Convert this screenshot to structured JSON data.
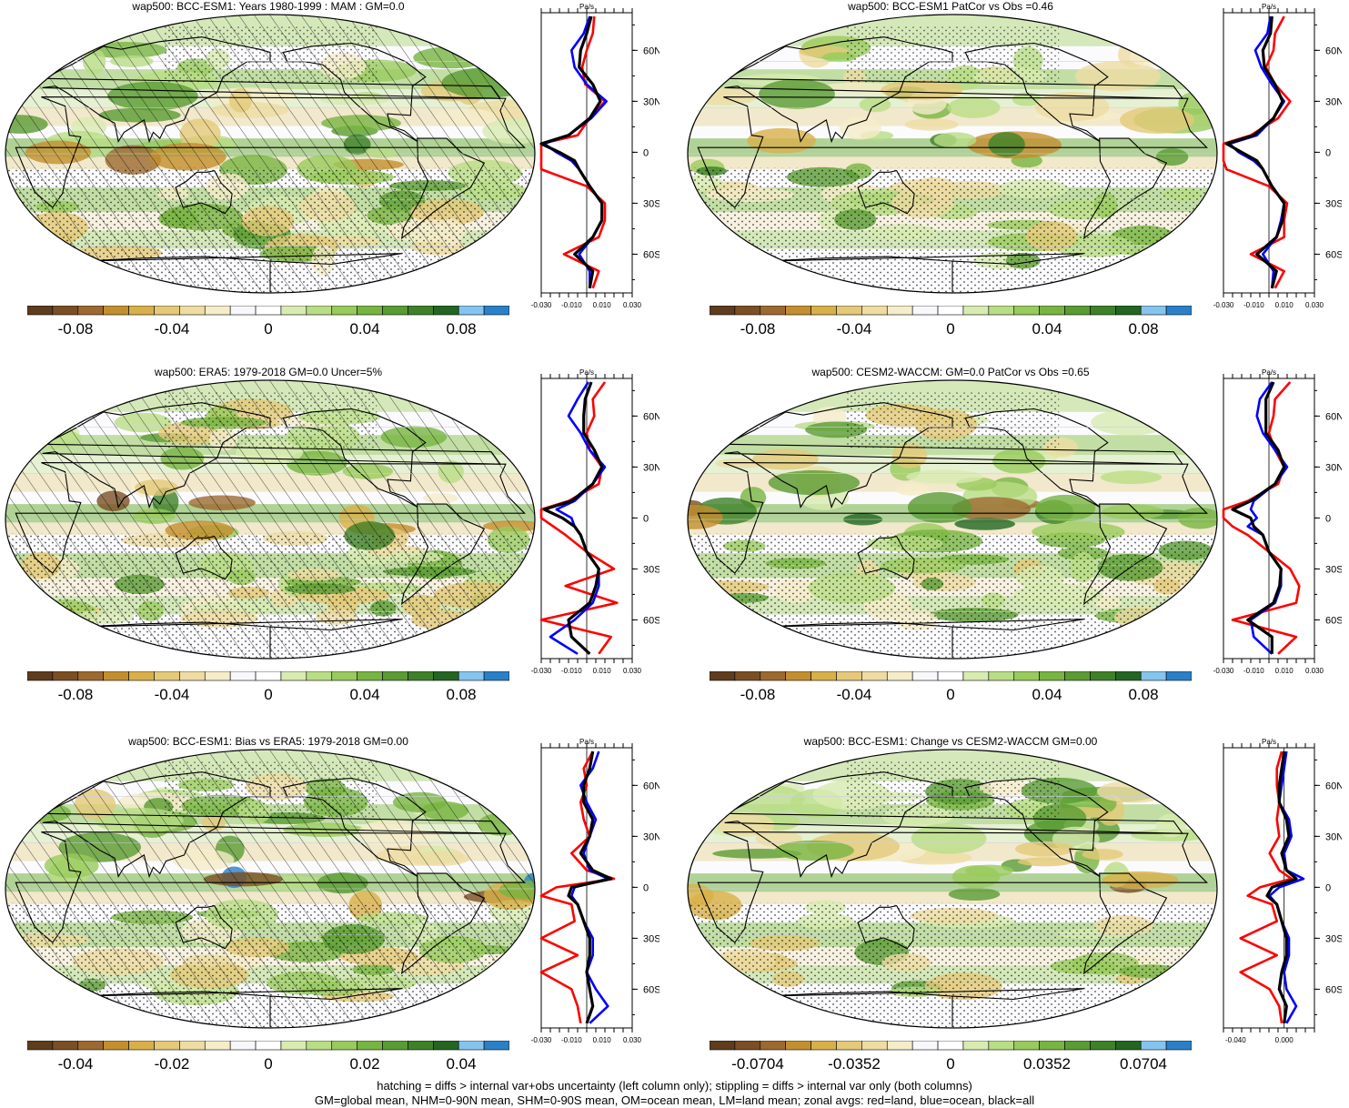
{
  "colors": {
    "colorbar": [
      "#5e3c1e",
      "#7b4f24",
      "#9c6a31",
      "#c38f2e",
      "#d8b04a",
      "#e4c978",
      "#eedca2",
      "#f5ecc9",
      "#f8f8fc",
      "#ffffff",
      "#d8ebb0",
      "#b9dd84",
      "#98ca5c",
      "#78b441",
      "#5a9b33",
      "#3e8129",
      "#236622",
      "#85c4ee",
      "#2a80c8"
    ],
    "ocean": "#f6f7fc",
    "land_line": "#000000",
    "line_land": "#ff0000",
    "line_ocean": "#0000ff",
    "line_all": "#000000"
  },
  "footer": {
    "line1": "hatching = diffs > internal var+obs uncertainty (left column only); stippling = diffs > internal var only (both columns)",
    "line2": "GM=global mean, NHM=0-90N mean, SHM=0-90S mean, OM=ocean mean, LM=land mean; zonal avgs: red=land, blue=ocean, black=all"
  },
  "chart_data": [
    {
      "type": "heatmap",
      "title": "wap500: BCC-ESM1: Years 1980-1999 : MAM : GM=0.0",
      "hatching": true,
      "stippling": true,
      "colorbar_ticks": [
        "-0.08",
        "-0.04",
        "0",
        "0.04",
        "0.08"
      ],
      "colorbar_range": [
        -0.1,
        0.1
      ],
      "zonal": {
        "unit": "Pa/s",
        "xtick_labels": [
          "-0.030",
          "-0.010",
          "0.010",
          "0.030"
        ],
        "xlim": [
          -0.03,
          0.03
        ],
        "ytick_labels": [
          "60N",
          "30N",
          "0",
          "30S",
          "60S"
        ],
        "latitudes": [
          80,
          70,
          60,
          50,
          40,
          30,
          20,
          10,
          5,
          0,
          -5,
          -10,
          -20,
          -30,
          -40,
          -50,
          -60,
          -70,
          -80
        ],
        "series": [
          {
            "name": "land",
            "values": [
              0.005,
              0.004,
              0.0,
              -0.003,
              -0.001,
              0.012,
              0.002,
              -0.006,
              -0.03,
              -0.03,
              -0.03,
              -0.03,
              0.0,
              0.012,
              0.012,
              0.008,
              -0.015,
              0.008,
              0.004
            ]
          },
          {
            "name": "ocean",
            "values": [
              0.002,
              -0.002,
              -0.01,
              -0.008,
              0.0,
              0.013,
              0.003,
              -0.012,
              -0.028,
              -0.02,
              -0.01,
              -0.005,
              0.002,
              0.01,
              0.01,
              0.004,
              -0.005,
              0.002,
              0.002
            ]
          },
          {
            "name": "all",
            "values": [
              0.003,
              0.0,
              -0.004,
              -0.005,
              0.004,
              0.009,
              0.002,
              -0.012,
              -0.03,
              -0.018,
              -0.008,
              -0.005,
              0.002,
              0.01,
              0.01,
              0.004,
              -0.008,
              0.004,
              0.002
            ]
          }
        ]
      }
    },
    {
      "type": "heatmap",
      "title": "wap500: BCC-ESM1 PatCor vs Obs =0.46",
      "hatching": false,
      "stippling": true,
      "colorbar_ticks": [
        "-0.08",
        "-0.04",
        "0",
        "0.04",
        "0.08"
      ],
      "colorbar_range": [
        -0.1,
        0.1
      ],
      "zonal": {
        "unit": "Pa/s",
        "xtick_labels": [
          "-0.030",
          "-0.010",
          "0.010",
          "0.030"
        ],
        "xlim": [
          -0.03,
          0.03
        ],
        "ytick_labels": [
          "60N",
          "30N",
          "0",
          "30S",
          "60S"
        ],
        "latitudes": [
          80,
          70,
          60,
          50,
          40,
          30,
          20,
          10,
          5,
          0,
          -5,
          -10,
          -20,
          -30,
          -40,
          -50,
          -60,
          -70,
          -80
        ],
        "series": [
          {
            "name": "land",
            "values": [
              0.01,
              0.004,
              0.003,
              -0.002,
              0.004,
              0.014,
              0.006,
              -0.012,
              -0.03,
              -0.03,
              -0.03,
              -0.028,
              0.0,
              0.012,
              0.01,
              0.01,
              -0.012,
              0.01,
              0.004
            ]
          },
          {
            "name": "ocean",
            "values": [
              0.001,
              -0.001,
              -0.009,
              -0.005,
              0.002,
              0.01,
              0.003,
              -0.008,
              -0.026,
              -0.02,
              -0.01,
              -0.004,
              0.002,
              0.01,
              0.008,
              0.005,
              -0.004,
              0.003,
              0.002
            ]
          },
          {
            "name": "all",
            "values": [
              0.002,
              0.001,
              -0.004,
              -0.003,
              0.004,
              0.009,
              0.003,
              -0.01,
              -0.028,
              -0.018,
              -0.008,
              -0.004,
              0.002,
              0.01,
              0.009,
              0.005,
              -0.008,
              0.005,
              0.002
            ]
          }
        ]
      }
    },
    {
      "type": "heatmap",
      "title": "wap500: ERA5: 1979-2018 GM=0.0 Uncer=5%",
      "hatching": true,
      "stippling": true,
      "colorbar_ticks": [
        "-0.08",
        "-0.04",
        "0",
        "0.04",
        "0.08"
      ],
      "colorbar_range": [
        -0.1,
        0.1
      ],
      "zonal": {
        "unit": "Pa/s",
        "xtick_labels": [
          "-0.030",
          "-0.010",
          "0.010",
          "0.030"
        ],
        "xlim": [
          -0.03,
          0.03
        ],
        "ytick_labels": [
          "60N",
          "30N",
          "0",
          "30S",
          "60S"
        ],
        "latitudes": [
          80,
          70,
          60,
          50,
          40,
          30,
          20,
          10,
          5,
          0,
          -5,
          -10,
          -20,
          -30,
          -40,
          -50,
          -60,
          -70,
          -80
        ],
        "series": [
          {
            "name": "land",
            "values": [
              0.012,
              0.004,
              0.005,
              0.0,
              0.002,
              0.01,
              0.008,
              -0.012,
              -0.03,
              -0.03,
              -0.022,
              -0.014,
              0.0,
              0.018,
              -0.014,
              0.02,
              -0.03,
              0.016,
              0.008
            ]
          },
          {
            "name": "ocean",
            "values": [
              0.001,
              -0.006,
              -0.012,
              -0.004,
              0.002,
              0.012,
              0.004,
              -0.008,
              -0.02,
              -0.01,
              -0.008,
              -0.004,
              0.0,
              0.008,
              0.008,
              0.004,
              -0.008,
              -0.024,
              -0.006
            ]
          },
          {
            "name": "all",
            "values": [
              0.003,
              -0.001,
              -0.002,
              -0.002,
              0.005,
              0.01,
              0.004,
              -0.01,
              -0.028,
              -0.016,
              -0.008,
              -0.004,
              0.0,
              0.008,
              0.006,
              0.002,
              -0.012,
              -0.01,
              0.002
            ]
          }
        ]
      }
    },
    {
      "type": "heatmap",
      "title": "wap500: CESM2-WACCM: GM=0.0 PatCor vs Obs =0.65",
      "hatching": false,
      "stippling": true,
      "colorbar_ticks": [
        "-0.08",
        "-0.04",
        "0",
        "0.04",
        "0.08"
      ],
      "colorbar_range": [
        -0.1,
        0.1
      ],
      "zonal": {
        "unit": "Pa/s",
        "xtick_labels": [
          "-0.030",
          "-0.010",
          "0.010",
          "0.030"
        ],
        "xlim": [
          -0.03,
          0.03
        ],
        "ytick_labels": [
          "60N",
          "30N",
          "0",
          "30S",
          "60S"
        ],
        "latitudes": [
          80,
          70,
          60,
          50,
          40,
          30,
          20,
          10,
          5,
          0,
          -5,
          -10,
          -20,
          -30,
          -40,
          -50,
          -60,
          -70,
          -80
        ],
        "series": [
          {
            "name": "land",
            "values": [
              0.014,
              0.004,
              0.003,
              0.0,
              0.004,
              0.01,
              0.006,
              -0.014,
              -0.03,
              -0.03,
              -0.024,
              -0.014,
              0.0,
              0.014,
              0.02,
              0.018,
              -0.024,
              0.018,
              0.006
            ]
          },
          {
            "name": "ocean",
            "values": [
              0.002,
              -0.006,
              -0.008,
              -0.004,
              0.004,
              0.012,
              0.004,
              -0.01,
              -0.012,
              -0.008,
              -0.014,
              -0.004,
              0.0,
              0.008,
              0.008,
              0.004,
              -0.012,
              -0.01,
              0.002
            ]
          },
          {
            "name": "all",
            "values": [
              0.003,
              -0.002,
              -0.002,
              -0.002,
              0.006,
              0.01,
              0.004,
              -0.012,
              -0.024,
              -0.012,
              -0.01,
              -0.004,
              0.0,
              0.008,
              0.007,
              0.003,
              -0.014,
              0.002,
              0.002
            ]
          }
        ]
      }
    },
    {
      "type": "heatmap",
      "title": "wap500: BCC-ESM1: Bias vs ERA5: 1979-2018 GM=0.00",
      "hatching": true,
      "stippling": true,
      "colorbar_ticks": [
        "-0.04",
        "-0.02",
        "0",
        "0.02",
        "0.04"
      ],
      "colorbar_range": [
        -0.05,
        0.05
      ],
      "zonal": {
        "unit": "Pa/s",
        "xtick_labels": [
          "-0.030",
          "-0.010",
          "0.010",
          "0.030"
        ],
        "xlim": [
          -0.03,
          0.03
        ],
        "ytick_labels": [
          "60N",
          "30N",
          "0",
          "30S",
          "60S"
        ],
        "latitudes": [
          80,
          70,
          60,
          50,
          40,
          30,
          20,
          10,
          5,
          0,
          -5,
          -10,
          -20,
          -30,
          -40,
          -50,
          -60,
          -70,
          -80
        ],
        "series": [
          {
            "name": "land",
            "values": [
              0.004,
              -0.002,
              0.0,
              -0.004,
              -0.002,
              0.002,
              -0.01,
              0.0,
              0.018,
              -0.02,
              -0.03,
              -0.01,
              -0.008,
              -0.03,
              -0.006,
              -0.03,
              -0.01,
              -0.006,
              -0.004
            ]
          },
          {
            "name": "ocean",
            "values": [
              0.008,
              0.004,
              -0.004,
              0.0,
              0.006,
              0.002,
              -0.002,
              0.002,
              0.014,
              -0.008,
              -0.01,
              -0.006,
              -0.002,
              0.004,
              0.004,
              0.0,
              0.006,
              0.014,
              0.002
            ]
          },
          {
            "name": "all",
            "values": [
              0.004,
              0.002,
              -0.002,
              -0.002,
              0.004,
              0.002,
              -0.004,
              0.004,
              0.016,
              -0.01,
              -0.012,
              -0.006,
              -0.002,
              0.002,
              0.002,
              0.0,
              0.002,
              0.004,
              0.0
            ]
          }
        ]
      }
    },
    {
      "type": "heatmap",
      "title": "wap500: BCC-ESM1: Change vs CESM2-WACCM GM=0.00",
      "hatching": false,
      "stippling": true,
      "colorbar_ticks": [
        "-0.0704",
        "-0.0352",
        "0",
        "0.0352",
        "0.0704"
      ],
      "colorbar_range": [
        -0.088,
        0.088
      ],
      "zonal": {
        "unit": "Pa/s",
        "xtick_labels": [
          "-0.040",
          "0.000"
        ],
        "xlim": [
          -0.05,
          0.025
        ],
        "ytick_labels": [
          "60N",
          "30N",
          "0",
          "30S",
          "60S"
        ],
        "latitudes": [
          80,
          70,
          60,
          50,
          40,
          30,
          20,
          10,
          5,
          0,
          -5,
          -10,
          -20,
          -30,
          -40,
          -50,
          -60,
          -70,
          -80
        ],
        "series": [
          {
            "name": "land",
            "values": [
              -0.002,
              -0.006,
              -0.006,
              -0.004,
              -0.006,
              -0.004,
              -0.012,
              -0.004,
              0.006,
              -0.02,
              -0.03,
              -0.01,
              -0.006,
              -0.036,
              -0.006,
              -0.036,
              -0.012,
              -0.004,
              -0.002
            ]
          },
          {
            "name": "ocean",
            "values": [
              0.002,
              0.0,
              -0.002,
              -0.004,
              0.004,
              0.006,
              0.0,
              0.002,
              0.016,
              -0.004,
              -0.012,
              -0.006,
              -0.002,
              0.004,
              0.004,
              0.0,
              0.002,
              0.01,
              0.002
            ]
          },
          {
            "name": "all",
            "values": [
              0.0,
              -0.002,
              -0.004,
              -0.004,
              0.002,
              0.004,
              -0.002,
              0.002,
              0.01,
              -0.01,
              -0.014,
              -0.006,
              -0.002,
              0.002,
              0.002,
              -0.002,
              -0.004,
              0.002,
              0.0
            ]
          }
        ]
      }
    }
  ]
}
